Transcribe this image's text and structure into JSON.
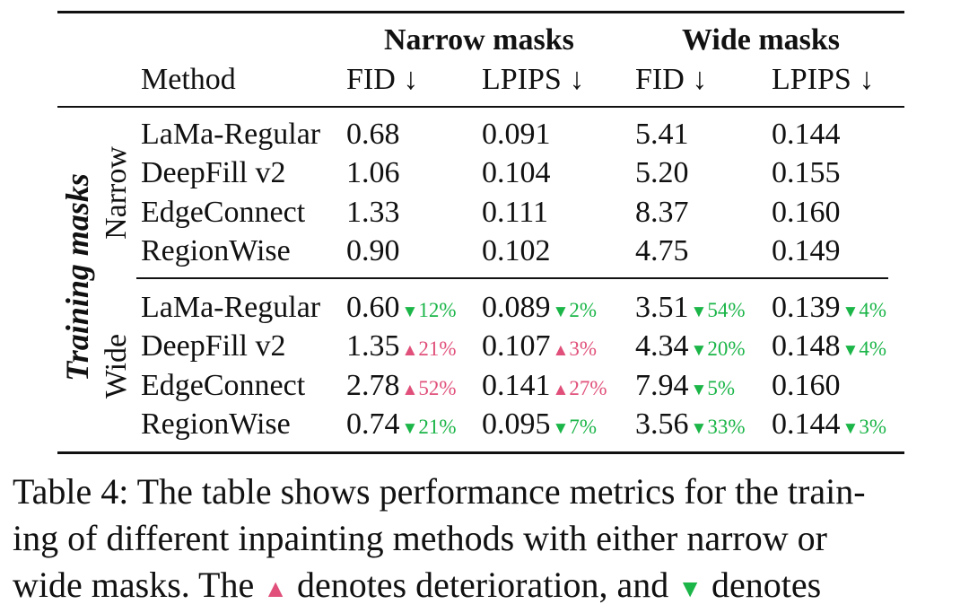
{
  "table": {
    "group_headers": {
      "narrow": "Narrow masks",
      "wide": "Wide masks"
    },
    "columns": [
      "Method",
      "FID ↓",
      "LPIPS ↓",
      "FID ↓",
      "LPIPS ↓"
    ],
    "row_group_axis_label": "Training masks",
    "groups": [
      {
        "label": "Narrow",
        "rows": [
          {
            "method": "LaMa-Regular",
            "cells": [
              {
                "value": "0.68"
              },
              {
                "value": "0.091"
              },
              {
                "value": "5.41"
              },
              {
                "value": "0.144"
              }
            ]
          },
          {
            "method": "DeepFill v2",
            "cells": [
              {
                "value": "1.06"
              },
              {
                "value": "0.104"
              },
              {
                "value": "5.20"
              },
              {
                "value": "0.155"
              }
            ]
          },
          {
            "method": "EdgeConnect",
            "cells": [
              {
                "value": "1.33"
              },
              {
                "value": "0.111"
              },
              {
                "value": "8.37"
              },
              {
                "value": "0.160"
              }
            ]
          },
          {
            "method": "RegionWise",
            "cells": [
              {
                "value": "0.90"
              },
              {
                "value": "0.102"
              },
              {
                "value": "4.75"
              },
              {
                "value": "0.149"
              }
            ]
          }
        ]
      },
      {
        "label": "Wide",
        "rows": [
          {
            "method": "LaMa-Regular",
            "cells": [
              {
                "value": "0.60",
                "dir": "down",
                "tri": "▼",
                "pct": "12%"
              },
              {
                "value": "0.089",
                "dir": "down",
                "tri": "▼",
                "pct": "2%"
              },
              {
                "value": "3.51",
                "dir": "down",
                "tri": "▼",
                "pct": "54%"
              },
              {
                "value": "0.139",
                "dir": "down",
                "tri": "▼",
                "pct": "4%"
              }
            ]
          },
          {
            "method": "DeepFill v2",
            "cells": [
              {
                "value": "1.35",
                "dir": "up",
                "tri": "▲",
                "pct": "21%"
              },
              {
                "value": "0.107",
                "dir": "up",
                "tri": "▲",
                "pct": "3%"
              },
              {
                "value": "4.34",
                "dir": "down",
                "tri": "▼",
                "pct": "20%"
              },
              {
                "value": "0.148",
                "dir": "down",
                "tri": "▼",
                "pct": "4%"
              }
            ]
          },
          {
            "method": "EdgeConnect",
            "cells": [
              {
                "value": "2.78",
                "dir": "up",
                "tri": "▲",
                "pct": "52%"
              },
              {
                "value": "0.141",
                "dir": "up",
                "tri": "▲",
                "pct": "27%"
              },
              {
                "value": "7.94",
                "dir": "down",
                "tri": "▼",
                "pct": "5%"
              },
              {
                "value": "0.160"
              }
            ]
          },
          {
            "method": "RegionWise",
            "cells": [
              {
                "value": "0.74",
                "dir": "down",
                "tri": "▼",
                "pct": "21%"
              },
              {
                "value": "0.095",
                "dir": "down",
                "tri": "▼",
                "pct": "7%"
              },
              {
                "value": "3.56",
                "dir": "down",
                "tri": "▼",
                "pct": "33%"
              },
              {
                "value": "0.144",
                "dir": "down",
                "tri": "▼",
                "pct": "3%"
              }
            ]
          }
        ]
      }
    ]
  },
  "caption": {
    "line1": "Table 4: The table shows performance metrics for the train-",
    "line2": "ing of different inpainting methods with either narrow or",
    "line3_a": "wide masks.  The ",
    "tri_up": "▲",
    "line3_b": " denotes deterioration, and ",
    "tri_down": "▼",
    "line3_c": " denotes"
  },
  "colors": {
    "improve": "#1bb548",
    "deteriorate": "#e0507a",
    "ink": "#111111"
  }
}
